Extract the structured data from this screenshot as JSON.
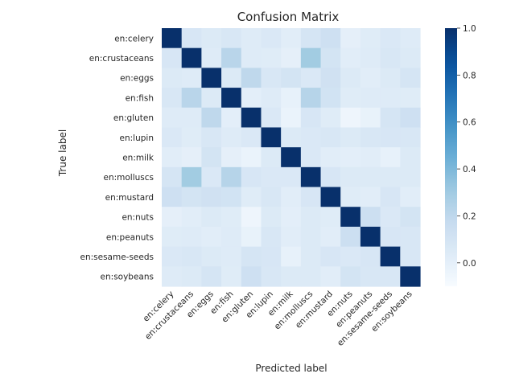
{
  "chart_data": {
    "type": "heatmap",
    "title": "Confusion Matrix",
    "xlabel": "Predicted label",
    "ylabel": "True label",
    "categories": [
      "en:celery",
      "en:crustaceans",
      "en:eggs",
      "en:fish",
      "en:gluten",
      "en:lupin",
      "en:milk",
      "en:molluscs",
      "en:mustard",
      "en:nuts",
      "en:peanuts",
      "en:sesame-seeds",
      "en:soybeans"
    ],
    "colormap": "Blues",
    "colors": {
      "low": "#f7fbff",
      "high": "#08306b"
    },
    "vmin": -0.1,
    "vmax": 1.0,
    "colorbar_ticks": [
      0.0,
      0.2,
      0.4,
      0.6,
      0.8,
      1.0
    ],
    "colorbar_tick_labels": [
      "0.0",
      "0.2",
      "0.4",
      "0.6",
      "0.8",
      "1.0"
    ],
    "values": [
      [
        1.0,
        0.08,
        0.05,
        0.07,
        0.04,
        0.06,
        0.02,
        0.09,
        0.13,
        0.0,
        0.03,
        0.06,
        0.04
      ],
      [
        0.08,
        1.0,
        0.04,
        0.22,
        0.04,
        0.03,
        0.0,
        0.3,
        0.1,
        0.02,
        0.04,
        0.07,
        0.05
      ],
      [
        0.05,
        0.04,
        1.0,
        0.05,
        0.2,
        0.07,
        0.1,
        0.06,
        0.12,
        0.05,
        0.02,
        0.05,
        0.09
      ],
      [
        0.07,
        0.22,
        0.05,
        1.0,
        0.01,
        0.04,
        -0.01,
        0.23,
        0.11,
        0.03,
        0.04,
        0.04,
        0.03
      ],
      [
        0.04,
        0.04,
        0.2,
        0.01,
        1.0,
        0.06,
        -0.03,
        0.08,
        0.03,
        -0.05,
        -0.02,
        0.09,
        0.13
      ],
      [
        0.06,
        0.03,
        0.07,
        0.04,
        0.06,
        1.0,
        0.05,
        0.06,
        0.07,
        0.05,
        0.07,
        0.08,
        0.07
      ],
      [
        0.02,
        0.0,
        0.1,
        0.0,
        -0.03,
        0.05,
        1.0,
        0.06,
        0.02,
        0.01,
        0.02,
        -0.01,
        0.05
      ],
      [
        0.09,
        0.3,
        0.06,
        0.23,
        0.08,
        0.06,
        0.06,
        1.0,
        0.08,
        0.05,
        0.05,
        0.05,
        0.05
      ],
      [
        0.13,
        0.1,
        0.12,
        0.11,
        0.03,
        0.07,
        0.02,
        0.08,
        1.0,
        0.03,
        0.02,
        0.08,
        0.02
      ],
      [
        0.0,
        0.02,
        0.05,
        0.03,
        -0.05,
        0.05,
        0.01,
        0.05,
        0.03,
        1.0,
        0.14,
        0.06,
        0.1
      ],
      [
        0.03,
        0.04,
        0.02,
        0.04,
        -0.02,
        0.07,
        0.02,
        0.05,
        0.02,
        0.14,
        1.0,
        0.08,
        0.07
      ],
      [
        0.06,
        0.07,
        0.05,
        0.04,
        0.09,
        0.08,
        -0.01,
        0.05,
        0.08,
        0.06,
        0.08,
        1.0,
        0.07
      ],
      [
        0.04,
        0.05,
        0.09,
        0.03,
        0.13,
        0.07,
        0.05,
        0.05,
        0.02,
        0.1,
        0.07,
        0.07,
        1.0
      ]
    ]
  }
}
